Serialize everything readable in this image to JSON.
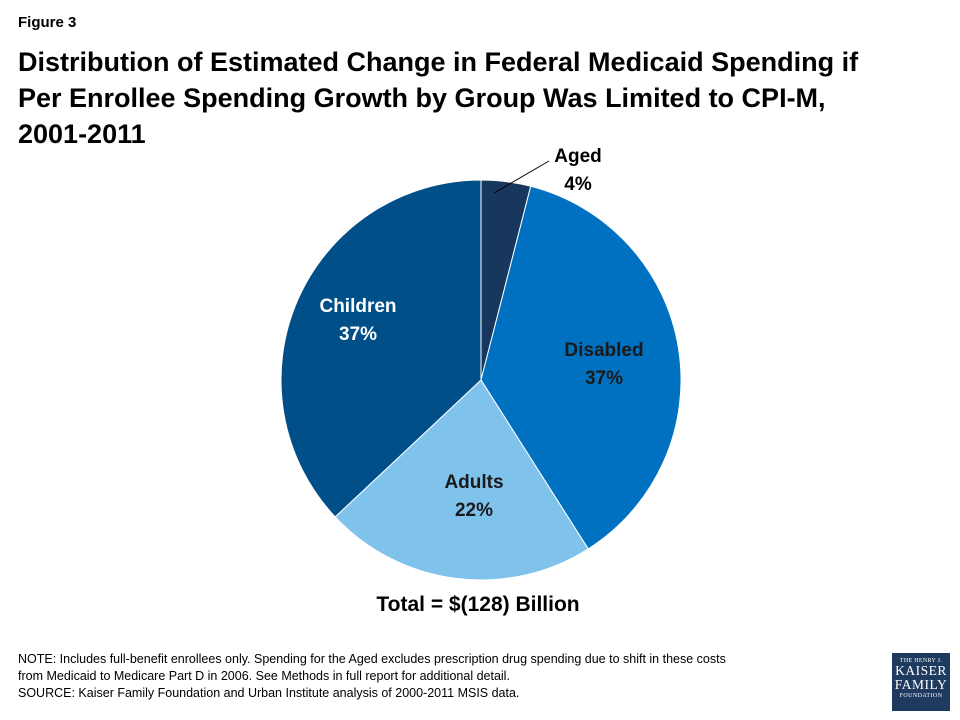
{
  "figure_label": "Figure 3",
  "title_lines": [
    "Distribution of Estimated Change in Federal Medicaid Spending if",
    "Per Enrollee Spending Growth by Group Was Limited to CPI-M,",
    "2001-2011"
  ],
  "total_label": "Total = $(128) Billion",
  "notes": [
    "NOTE: Includes full-benefit enrollees only.  Spending for the Aged excludes prescription drug spending due to shift in these costs",
    "from Medicaid to Medicare Part D in 2006. See Methods in full report for additional detail.",
    "SOURCE: Kaiser Family Foundation and Urban Institute analysis of 2000-2011 MSIS data."
  ],
  "logo": {
    "line1": "THE HENRY J.",
    "line2": "KAISER",
    "line3": "FAMILY",
    "line4": "FOUNDATION"
  },
  "chart_data": {
    "type": "pie",
    "title": "Distribution of Estimated Change in Federal Medicaid Spending if Per Enrollee Spending Growth by Group Was Limited to CPI-M, 2001-2011",
    "slices": [
      {
        "label": "Aged",
        "value": 4,
        "display": "4%",
        "color": "#17375e"
      },
      {
        "label": "Disabled",
        "value": 37,
        "display": "37%",
        "color": "#0070c0"
      },
      {
        "label": "Adults",
        "value": 22,
        "display": "22%",
        "color": "#7fc3ec"
      },
      {
        "label": "Children",
        "value": 37,
        "display": "37%",
        "color": "#004f88"
      }
    ]
  }
}
